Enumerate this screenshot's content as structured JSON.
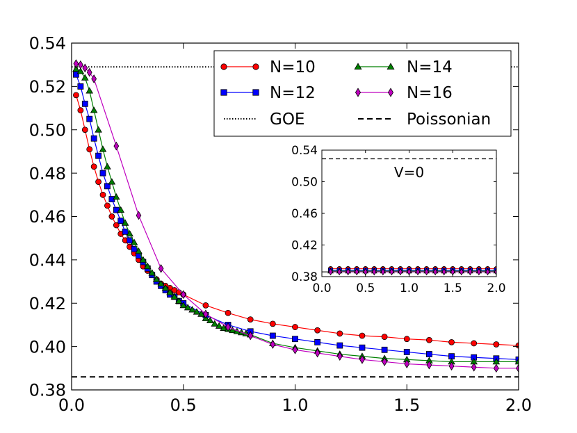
{
  "chart_data": [
    {
      "type": "line",
      "title": "",
      "xlabel": "",
      "ylabel": "",
      "xlim": [
        0.0,
        2.0
      ],
      "ylim": [
        0.38,
        0.54
      ],
      "xticks": [
        0.0,
        0.5,
        1.0,
        1.5,
        2.0
      ],
      "xtick_labels": [
        "0.0",
        "0.5",
        "1.0",
        "1.5",
        "2.0"
      ],
      "yticks": [
        0.38,
        0.4,
        0.42,
        0.44,
        0.46,
        0.48,
        0.5,
        0.52,
        0.54
      ],
      "ytick_labels": [
        "0.38",
        "0.40",
        "0.42",
        "0.44",
        "0.46",
        "0.48",
        "0.50",
        "0.52",
        "0.54"
      ],
      "reference_lines": [
        {
          "name": "GOE",
          "value": 0.529,
          "style": "dotted",
          "color": "#000000"
        },
        {
          "name": "Poissonian",
          "value": 0.386,
          "style": "dashed",
          "color": "#000000"
        }
      ],
      "series": [
        {
          "name": "N=10",
          "color": "#ff0000",
          "marker": "circle",
          "x": [
            0.02,
            0.04,
            0.06,
            0.08,
            0.1,
            0.12,
            0.14,
            0.16,
            0.18,
            0.2,
            0.22,
            0.24,
            0.26,
            0.28,
            0.3,
            0.32,
            0.34,
            0.36,
            0.38,
            0.4,
            0.42,
            0.44,
            0.46,
            0.48,
            0.5,
            0.6,
            0.7,
            0.8,
            0.9,
            1.0,
            1.1,
            1.2,
            1.3,
            1.4,
            1.5,
            1.6,
            1.7,
            1.8,
            1.9,
            2.0
          ],
          "y": [
            0.516,
            0.509,
            0.5,
            0.491,
            0.483,
            0.476,
            0.47,
            0.465,
            0.46,
            0.456,
            0.452,
            0.449,
            0.446,
            0.443,
            0.44,
            0.437,
            0.435,
            0.433,
            0.431,
            0.429,
            0.428,
            0.427,
            0.426,
            0.425,
            0.424,
            0.419,
            0.4155,
            0.4125,
            0.4105,
            0.409,
            0.4075,
            0.406,
            0.405,
            0.4045,
            0.4035,
            0.403,
            0.402,
            0.4015,
            0.401,
            0.4005
          ]
        },
        {
          "name": "N=12",
          "color": "#0000ff",
          "marker": "square",
          "x": [
            0.02,
            0.04,
            0.06,
            0.08,
            0.1,
            0.12,
            0.14,
            0.16,
            0.18,
            0.2,
            0.22,
            0.24,
            0.26,
            0.28,
            0.3,
            0.32,
            0.34,
            0.36,
            0.38,
            0.4,
            0.42,
            0.44,
            0.46,
            0.48,
            0.5,
            0.6,
            0.7,
            0.8,
            0.9,
            1.0,
            1.1,
            1.2,
            1.3,
            1.4,
            1.5,
            1.6,
            1.7,
            1.8,
            1.9,
            2.0
          ],
          "y": [
            0.5255,
            0.52,
            0.512,
            0.505,
            0.496,
            0.488,
            0.48,
            0.474,
            0.468,
            0.463,
            0.458,
            0.453,
            0.449,
            0.445,
            0.442,
            0.439,
            0.436,
            0.433,
            0.43,
            0.428,
            0.426,
            0.424,
            0.423,
            0.421,
            0.42,
            0.4145,
            0.41,
            0.407,
            0.405,
            0.4035,
            0.402,
            0.4005,
            0.3995,
            0.3985,
            0.3975,
            0.3965,
            0.3955,
            0.395,
            0.3945,
            0.394
          ]
        },
        {
          "name": "N=14",
          "color": "#008000",
          "marker": "triangle",
          "x": [
            0.02,
            0.04,
            0.06,
            0.08,
            0.1,
            0.12,
            0.14,
            0.16,
            0.18,
            0.2,
            0.22,
            0.24,
            0.26,
            0.28,
            0.3,
            0.32,
            0.34,
            0.36,
            0.38,
            0.4,
            0.42,
            0.44,
            0.46,
            0.48,
            0.5,
            0.52,
            0.54,
            0.56,
            0.58,
            0.6,
            0.62,
            0.64,
            0.66,
            0.68,
            0.7,
            0.72,
            0.74,
            0.76,
            0.78,
            0.8,
            0.9,
            1.0,
            1.1,
            1.2,
            1.3,
            1.4,
            1.5,
            1.6,
            1.7,
            1.8,
            1.9,
            2.0
          ],
          "y": [
            0.528,
            0.527,
            0.524,
            0.518,
            0.509,
            0.5,
            0.491,
            0.483,
            0.476,
            0.469,
            0.463,
            0.457,
            0.452,
            0.448,
            0.444,
            0.44,
            0.437,
            0.434,
            0.431,
            0.429,
            0.427,
            0.425,
            0.423,
            0.421,
            0.419,
            0.418,
            0.417,
            0.416,
            0.415,
            0.413,
            0.412,
            0.4105,
            0.4095,
            0.4085,
            0.408,
            0.4075,
            0.407,
            0.4065,
            0.406,
            0.4055,
            0.4015,
            0.3995,
            0.398,
            0.3965,
            0.3955,
            0.3945,
            0.394,
            0.3935,
            0.393,
            0.393,
            0.393,
            0.393
          ]
        },
        {
          "name": "N=16",
          "color": "#bf00bf",
          "marker": "diamond",
          "x": [
            0.02,
            0.04,
            0.06,
            0.08,
            0.1,
            0.2,
            0.3,
            0.4,
            0.5,
            0.6,
            0.7,
            0.8,
            0.9,
            1.0,
            1.1,
            1.2,
            1.3,
            1.4,
            1.5,
            1.6,
            1.7,
            1.8,
            1.9,
            2.0
          ],
          "y": [
            0.5305,
            0.53,
            0.5285,
            0.5265,
            0.5235,
            0.4925,
            0.4605,
            0.436,
            0.424,
            0.415,
            0.409,
            0.405,
            0.401,
            0.3985,
            0.397,
            0.3955,
            0.394,
            0.393,
            0.392,
            0.3915,
            0.391,
            0.3905,
            0.39,
            0.39
          ]
        }
      ],
      "legend": {
        "placement": "top-right",
        "entries": [
          "N=10",
          "N=12",
          "GOE",
          "N=14",
          "N=16",
          "Poissonian"
        ]
      }
    },
    {
      "type": "line",
      "title": "V=0",
      "xlim": [
        0.0,
        2.0
      ],
      "ylim": [
        0.38,
        0.54
      ],
      "xticks": [
        0.0,
        0.5,
        1.0,
        1.5,
        2.0
      ],
      "xtick_labels": [
        "0.0",
        "0.5",
        "1.0",
        "1.5",
        "2.0"
      ],
      "yticks": [
        0.38,
        0.42,
        0.46,
        0.5,
        0.54
      ],
      "ytick_labels": [
        "0.38",
        "0.42",
        "0.46",
        "0.50",
        "0.54"
      ],
      "reference_lines": [
        {
          "name": "GOE",
          "value": 0.529,
          "style": "dashed",
          "color": "#000000"
        },
        {
          "name": "Poissonian",
          "value": 0.386,
          "style": "solid",
          "color": "#000000"
        }
      ],
      "series": [
        {
          "name": "N=10",
          "color": "#ff0000",
          "marker": "circle",
          "x": [
            0.1,
            0.2,
            0.3,
            0.4,
            0.5,
            0.6,
            0.7,
            0.8,
            0.9,
            1.0,
            1.1,
            1.2,
            1.3,
            1.4,
            1.5,
            1.6,
            1.7,
            1.8,
            1.9,
            2.0
          ],
          "y": [
            0.39,
            0.39,
            0.39,
            0.39,
            0.39,
            0.39,
            0.39,
            0.39,
            0.39,
            0.39,
            0.39,
            0.39,
            0.39,
            0.39,
            0.39,
            0.39,
            0.39,
            0.39,
            0.39,
            0.39
          ]
        },
        {
          "name": "N=12",
          "color": "#0000ff",
          "marker": "square",
          "x": [
            0.1,
            0.2,
            0.3,
            0.4,
            0.5,
            0.6,
            0.7,
            0.8,
            0.9,
            1.0,
            1.1,
            1.2,
            1.3,
            1.4,
            1.5,
            1.6,
            1.7,
            1.8,
            1.9,
            2.0
          ],
          "y": [
            0.388,
            0.388,
            0.388,
            0.388,
            0.388,
            0.388,
            0.388,
            0.388,
            0.388,
            0.388,
            0.388,
            0.388,
            0.388,
            0.388,
            0.388,
            0.388,
            0.388,
            0.388,
            0.388,
            0.388
          ]
        },
        {
          "name": "N=14",
          "color": "#008000",
          "marker": "triangle",
          "x": [
            0.1,
            0.2,
            0.3,
            0.4,
            0.5,
            0.6,
            0.7,
            0.8,
            0.9,
            1.0,
            1.1,
            1.2,
            1.3,
            1.4,
            1.5,
            1.6,
            1.7,
            1.8,
            1.9,
            2.0
          ],
          "y": [
            0.387,
            0.387,
            0.387,
            0.387,
            0.387,
            0.387,
            0.387,
            0.387,
            0.387,
            0.387,
            0.387,
            0.387,
            0.387,
            0.387,
            0.387,
            0.387,
            0.387,
            0.387,
            0.387,
            0.387
          ]
        },
        {
          "name": "N=16",
          "color": "#bf00bf",
          "marker": "diamond",
          "x": [
            0.1,
            0.2,
            0.3,
            0.4,
            0.5,
            0.6,
            0.7,
            0.8,
            0.9,
            1.0,
            1.1,
            1.2,
            1.3,
            1.4,
            1.5,
            1.6,
            1.7,
            1.8,
            1.9,
            2.0
          ],
          "y": [
            0.386,
            0.386,
            0.386,
            0.386,
            0.386,
            0.386,
            0.386,
            0.386,
            0.386,
            0.386,
            0.386,
            0.386,
            0.386,
            0.386,
            0.386,
            0.386,
            0.386,
            0.386,
            0.386,
            0.386
          ]
        }
      ]
    }
  ]
}
